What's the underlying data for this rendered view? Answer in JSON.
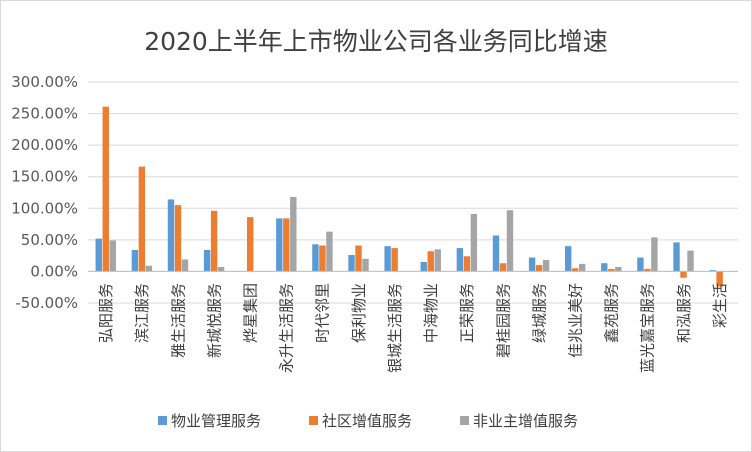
{
  "chart_data": {
    "type": "bar",
    "title": "2020上半年上市物业公司各业务同比增速",
    "categories": [
      "弘阳服务",
      "滨江服务",
      "雅生活服务",
      "新城悦服务",
      "烨星集团",
      "永升生活服务",
      "时代邻里",
      "保利物业",
      "银城生活服务",
      "中海物业",
      "正荣服务",
      "碧桂园服务",
      "绿城服务",
      "佳兆业美好",
      "鑫苑服务",
      "蓝光嘉宝服务",
      "和泓服务",
      "彩生活"
    ],
    "series": [
      {
        "name": "物业管理服务",
        "color": "#5B9BD5",
        "values": [
          52,
          34,
          114,
          34,
          0,
          84,
          43,
          26,
          40,
          15,
          37,
          57,
          22,
          40,
          13,
          22,
          46,
          2
        ]
      },
      {
        "name": "社区增值服务",
        "color": "#ED7D31",
        "values": [
          261,
          166,
          105,
          96,
          86,
          84,
          41,
          41,
          37,
          32,
          24,
          13,
          10,
          5,
          4,
          4,
          -10,
          -24
        ]
      },
      {
        "name": "非业主增值服务",
        "color": "#A5A5A5",
        "values": [
          49,
          9,
          19,
          7,
          0,
          118,
          63,
          20,
          0,
          35,
          91,
          97,
          18,
          12,
          7,
          54,
          33,
          0
        ]
      }
    ],
    "ylim": [
      -50,
      300
    ],
    "yticks": [
      "300.00%",
      "250.00%",
      "200.00%",
      "150.00%",
      "100.00%",
      "50.00%",
      "0.00%",
      "-50.00%"
    ],
    "xlabel": "",
    "ylabel": "",
    "legend_position": "bottom"
  }
}
